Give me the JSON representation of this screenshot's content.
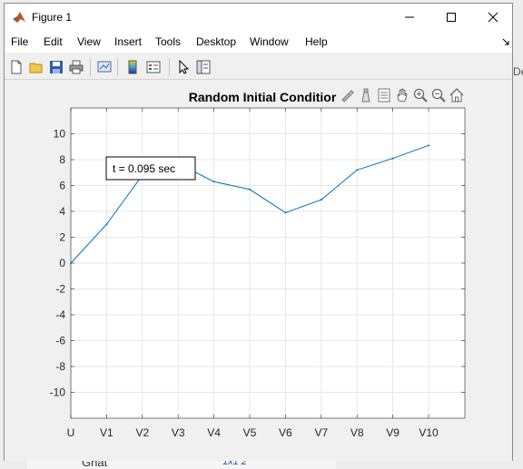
{
  "window": {
    "title": "Figure 1"
  },
  "menu": [
    "File",
    "Edit",
    "View",
    "Insert",
    "Tools",
    "Desktop",
    "Window",
    "Help"
  ],
  "toolbar": {
    "icons": [
      "new-figure-icon",
      "open-file-icon",
      "save-icon",
      "print-icon",
      "link-plot-icon",
      "colorbar-icon",
      "legend-icon",
      "edit-plot-icon",
      "property-inspector-icon"
    ]
  },
  "axes_toolbar": {
    "icons": [
      "brush-icon",
      "data-tips-icon",
      "restore-view-icon",
      "pan-icon",
      "zoom-in-icon",
      "zoom-out-icon",
      "home-icon"
    ]
  },
  "background": {
    "bottom_label": "Gnat",
    "bottom_value": "1x1 2"
  },
  "chart_data": {
    "type": "line",
    "title": "Random Initial Conditior",
    "annotation": "t = 0.095 sec",
    "categories": [
      "U",
      "V1",
      "V2",
      "V3",
      "V4",
      "V5",
      "V6",
      "V7",
      "V8",
      "V9",
      "V10"
    ],
    "series": [
      {
        "values": [
          0,
          3.0,
          6.8,
          7.7,
          6.3,
          5.7,
          3.9,
          4.9,
          7.2,
          8.1,
          9.1
        ]
      }
    ],
    "ylim": [
      -12,
      12
    ],
    "yticks": [
      -10,
      -8,
      -6,
      -4,
      -2,
      0,
      2,
      4,
      6,
      8,
      10
    ],
    "grid": true,
    "color": "#0072bd"
  }
}
